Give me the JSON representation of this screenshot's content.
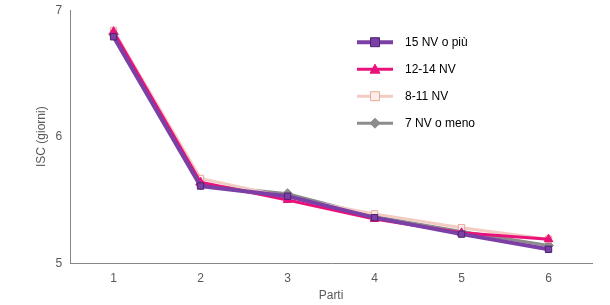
{
  "chart_data": {
    "type": "line",
    "x_label": "Parti",
    "y_label": "ISC (giorni)",
    "categories": [
      "1",
      "2",
      "3",
      "4",
      "5",
      "6"
    ],
    "series": [
      {
        "name": "15 NV o più",
        "color": "#7b3fa5",
        "marker": "square",
        "values": [
          6.79,
          5.61,
          5.53,
          5.36,
          5.23,
          5.11
        ]
      },
      {
        "name": "12-14 NV",
        "color": "#e8127a",
        "marker": "triangle",
        "values": [
          6.83,
          5.64,
          5.5,
          5.35,
          5.24,
          5.19
        ]
      },
      {
        "name": "8-11 NV",
        "color": "#f2cbc2",
        "marker": "square",
        "values": [
          6.84,
          5.67,
          5.52,
          5.39,
          5.28,
          5.19
        ]
      },
      {
        "name": "7 NV o meno",
        "color": "#8c8c8c",
        "marker": "diamond",
        "values": [
          6.81,
          5.62,
          5.55,
          5.37,
          5.25,
          5.14
        ]
      }
    ],
    "ylim": [
      5,
      7
    ],
    "yticks": [
      5,
      6,
      7
    ],
    "grid": false,
    "legend": "upper right"
  }
}
